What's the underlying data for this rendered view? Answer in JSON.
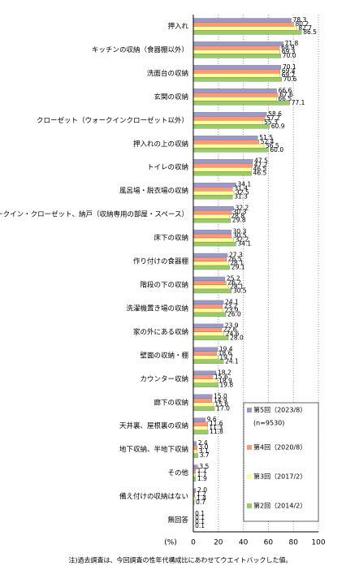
{
  "chart_data": {
    "type": "hbar",
    "categories": [
      "押入れ",
      "キッチンの収納（食器棚以外）",
      "洗面台の収納",
      "玄関の収納",
      "クローゼット（ウォークインクローゼット以外）",
      "押入れの上の収納",
      "トイレの収納",
      "風呂場・脱衣場の収納",
      "ウォークイン・クローゼット、納戸（収納専用の部屋・スペース）",
      "床下の収納",
      "作り付けの食器棚",
      "階段の下の収納",
      "洗濯機置き場の収納",
      "家の外にある収納",
      "壁面の収納・棚",
      "カウンター収納",
      "廊下の収納",
      "天井裏、屋根裏の収納",
      "地下収納、半地下収納",
      "その他",
      "備え付けの収納はない",
      "無回答"
    ],
    "series": [
      {
        "name": "第5回（2023/8）",
        "color": "#9999cc",
        "values": [
          78.3,
          71.8,
          70.1,
          66.6,
          58.6,
          51.5,
          47.5,
          34.1,
          32.2,
          30.3,
          27.3,
          25.2,
          24.1,
          23.9,
          19.4,
          18.2,
          15.0,
          9.6,
          2.4,
          3.5,
          2.0,
          0.1
        ],
        "value_labels": [
          "78.3",
          "71.8",
          "70.1",
          "66.6",
          "58.6",
          "51.5",
          "47.5",
          "34.1",
          "32.2",
          "30.3",
          "27.3",
          "25.2",
          "24.1",
          "23.9",
          "19.4",
          "18.2",
          "15.0",
          "9.6",
          "2.4",
          "3.5",
          "2.0",
          "0.1"
        ]
      },
      {
        "name": "第4回（2020/8）",
        "color": "#ff9977",
        "values": [
          80.2,
          68.9,
          69.4,
          67.6,
          57.2,
          52.4,
          47.2,
          31.4,
          30.3,
          30.5,
          26.5,
          26.2,
          23.2,
          22.6,
          18.6,
          15.6,
          14.9,
          11.6,
          3.0,
          1.7,
          1.2,
          0.1
        ],
        "value_labels": [
          "80.2",
          "68.9",
          "69.4",
          "67.6",
          "57.2",
          "52.4",
          "47.2",
          "31.4",
          "30.3",
          "30.5",
          "26.5",
          "26.2",
          "23.2",
          "22.6",
          "18.6",
          "15.6",
          "14.9",
          "11.6",
          "3.0",
          "1.7",
          "1.2",
          "0.1"
        ]
      },
      {
        "name": "第3回（2017/2）",
        "color": "#ffff99",
        "values": [
          82.7,
          69.3,
          69.2,
          66.5,
          55.3,
          56.5,
          46.5,
          32.5,
          28.8,
          32.2,
          28.1,
          28.1,
          23.9,
          24.6,
          19.7,
          18.9,
          15.8,
          11.3,
          3.1,
          1.7,
          1.4,
          0.1
        ],
        "value_labels": [
          "82.7",
          "69.3",
          "69.2",
          "66.5",
          "55.3",
          "56.5",
          "46.5",
          "32.5",
          "28.8",
          "32.2",
          "28.1",
          "28.1",
          "23.9",
          "24.6",
          "19.7",
          "18.9",
          "15.8",
          "11.3",
          "3.1",
          "1.7",
          "1.4",
          "0.1"
        ]
      },
      {
        "name": "第2回（2014/2）",
        "color": "#99cc66",
        "values": [
          86.5,
          70.0,
          70.6,
          77.1,
          60.9,
          60.0,
          46.5,
          31.3,
          29.8,
          34.1,
          29.1,
          30.5,
          26.0,
          28.0,
          24.1,
          19.8,
          17.0,
          11.8,
          3.7,
          1.9,
          0.7,
          0.1
        ],
        "value_labels": [
          "86.5",
          "70.0",
          "70.6",
          "77.1",
          "60.9",
          "60.0",
          "46.5",
          "31.3",
          "29.8",
          "34.1",
          "29.1",
          "30.5",
          "26.0",
          "28.0",
          "24.1",
          "19.8",
          "17.0",
          "11.8",
          "3.7",
          "1.9",
          "0.7",
          "0.1"
        ]
      }
    ],
    "legend_note": "(n=9530)",
    "x_label": "(%)",
    "xlim": [
      0,
      100
    ],
    "xticks": [
      0,
      20,
      40,
      60,
      80,
      100
    ],
    "grid": true,
    "note": "注)過去調査は、今回調査の性年代構成比にあわせてウエイトバックした値。"
  }
}
